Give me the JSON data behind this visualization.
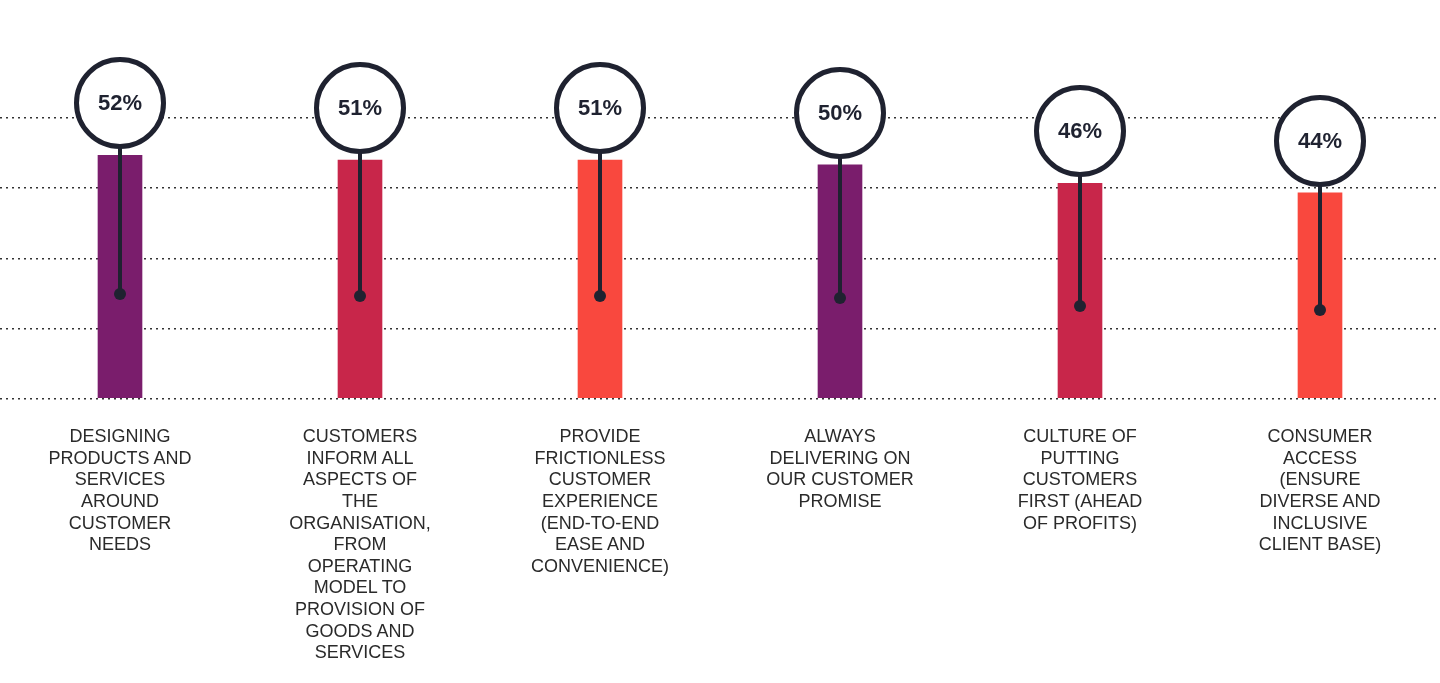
{
  "chart_data": {
    "type": "bar",
    "categories": [
      "DESIGNING PRODUCTS AND SERVICES AROUND CUSTOMER NEEDS",
      "CUSTOMERS INFORM ALL ASPECTS OF THE ORGANISATION, FROM OPERATING MODEL TO PROVISION OF GOODS AND SERVICES",
      "PROVIDE FRICTIONLESS CUSTOMER EXPERIENCE (END-TO-END EASE AND CONVENIENCE)",
      "ALWAYS DELIVERING ON OUR CUSTOMER PROMISE",
      "CULTURE OF PUTTING CUSTOMERS FIRST (AHEAD OF PROFITS)",
      "CONSUMER ACCESS (ENSURE DIVERSE AND INCLUSIVE CLIENT BASE)"
    ],
    "values": [
      52,
      51,
      51,
      50,
      46,
      44
    ],
    "colors": [
      "#7a1d6c",
      "#c8264a",
      "#f9483e",
      "#7a1d6c",
      "#c8264a",
      "#f9483e"
    ],
    "value_labels": [
      "52%",
      "51%",
      "51%",
      "50%",
      "46%",
      "44%"
    ],
    "ylim": [
      0,
      60
    ],
    "yticks": [
      {
        "value": 0,
        "label": null
      },
      {
        "value": 15,
        "label": null
      },
      {
        "value": 30,
        "label": null
      },
      {
        "value": 45,
        "label": null
      },
      {
        "value": 60,
        "label": null
      }
    ],
    "grid": "y",
    "tick_labels": "x"
  }
}
